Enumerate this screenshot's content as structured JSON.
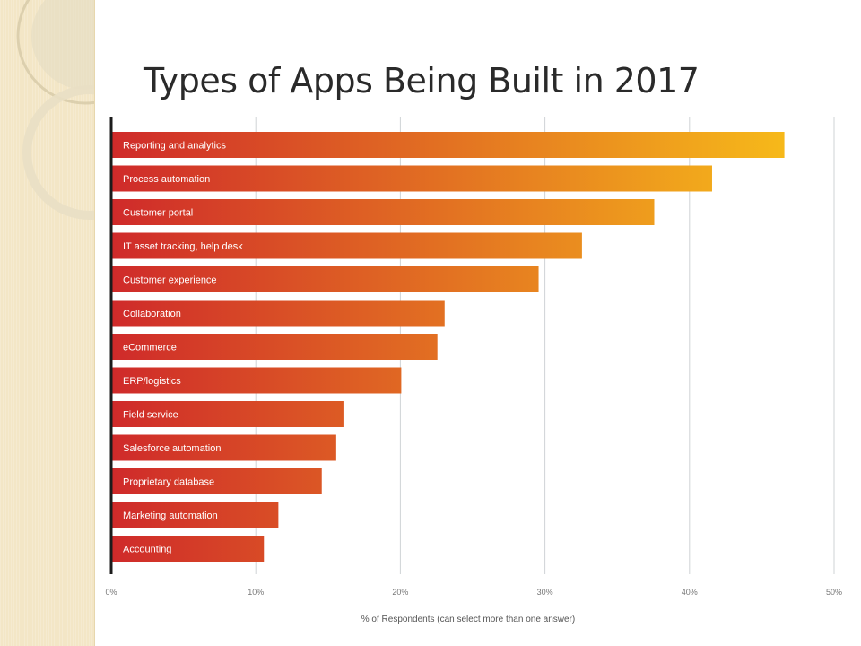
{
  "slide": {
    "title": "Types of Apps Being Built in 2017"
  },
  "colors": {
    "bar_low": "#cf2a2a",
    "bar_high": "#f6b81a",
    "axis": "#1c1c1c",
    "grid": "#cfd3d6",
    "decor": "#f3e6c6"
  },
  "chart_data": {
    "type": "bar",
    "orientation": "horizontal",
    "categories": [
      "Reporting and analytics",
      "Process automation",
      "Customer portal",
      "IT asset tracking, help desk",
      "Customer experience",
      "Collaboration",
      "eCommerce",
      "ERP/logistics",
      "Field service",
      "Salesforce automation",
      "Proprietary database",
      "Marketing automation",
      "Accounting"
    ],
    "values": [
      46.5,
      41.5,
      37.5,
      32.5,
      29.5,
      23,
      22.5,
      20,
      16,
      15.5,
      14.5,
      11.5,
      10.5
    ],
    "xlabel": "% of Respondents (can select more than one answer)",
    "xticks": [
      "0%",
      "10%",
      "20%",
      "30%",
      "40%",
      "50%"
    ],
    "xlim": [
      0,
      50
    ],
    "grid": true
  }
}
